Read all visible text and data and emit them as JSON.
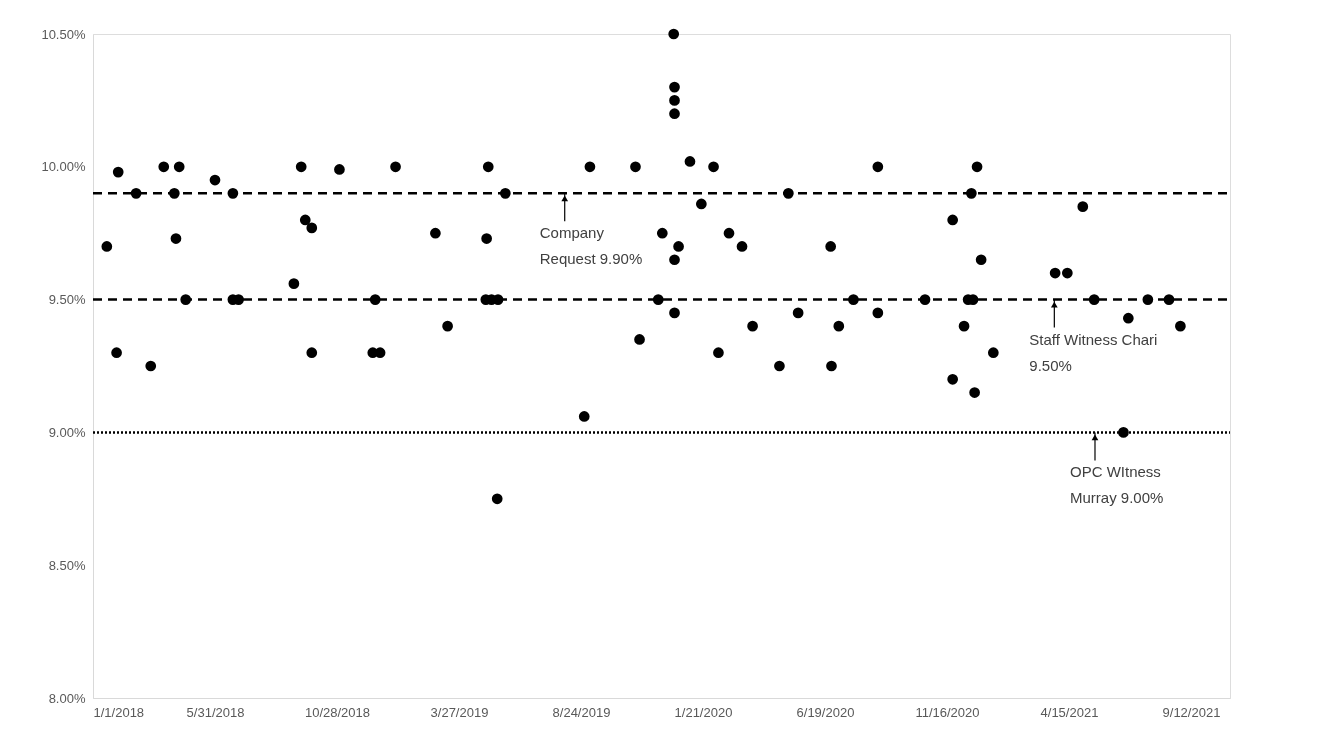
{
  "chart_data": {
    "type": "scatter",
    "marker": "circle",
    "xlim": [
      "2018-01-01",
      "2021-10-30"
    ],
    "xticks": [
      {
        "value": "2018-01-01",
        "label": "1/1/2018"
      },
      {
        "value": "2018-05-31",
        "label": "5/31/2018"
      },
      {
        "value": "2018-10-28",
        "label": "10/28/2018"
      },
      {
        "value": "2019-03-27",
        "label": "3/27/2019"
      },
      {
        "value": "2019-08-24",
        "label": "8/24/2019"
      },
      {
        "value": "2020-01-21",
        "label": "1/21/2020"
      },
      {
        "value": "2020-06-19",
        "label": "6/19/2020"
      },
      {
        "value": "2020-11-16",
        "label": "11/16/2020"
      },
      {
        "value": "2021-04-15",
        "label": "4/15/2021"
      },
      {
        "value": "2021-09-12",
        "label": "9/12/2021"
      }
    ],
    "ylim": [
      8.0,
      10.5
    ],
    "yticks": [
      {
        "value": 8.0,
        "label": "8.00%"
      },
      {
        "value": 8.5,
        "label": "8.50%"
      },
      {
        "value": 9.0,
        "label": "9.00%"
      },
      {
        "value": 9.5,
        "label": "9.50%"
      },
      {
        "value": 10.0,
        "label": "10.00%"
      },
      {
        "value": 10.5,
        "label": "10.50%"
      }
    ],
    "series": [
      {
        "color": "#000000",
        "x": [
          "2018-01-18",
          "2018-01-30",
          "2018-02-01",
          "2018-02-23",
          "2018-03-13",
          "2018-03-29",
          "2018-04-11",
          "2018-04-13",
          "2018-04-17",
          "2018-04-25",
          "2018-05-31",
          "2018-06-22",
          "2018-06-22",
          "2018-06-29",
          "2018-09-05",
          "2018-09-14",
          "2018-09-19",
          "2018-09-27",
          "2018-09-27",
          "2018-10-31",
          "2018-12-11",
          "2018-12-14",
          "2018-12-20",
          "2019-01-08",
          "2019-02-26",
          "2019-03-13",
          "2019-04-29",
          "2019-04-30",
          "2019-05-02",
          "2019-05-06",
          "2019-05-13",
          "2019-05-14",
          "2019-05-23",
          "2019-08-28",
          "2019-09-04",
          "2019-10-30",
          "2019-11-04",
          "2019-11-27",
          "2019-12-02",
          "2019-12-16",
          "2019-12-17",
          "2019-12-17",
          "2019-12-17",
          "2019-12-17",
          "2019-12-17",
          "2019-12-22",
          "2020-01-05",
          "2020-01-19",
          "2020-02-03",
          "2020-02-09",
          "2020-02-22",
          "2020-03-09",
          "2020-03-22",
          "2020-04-24",
          "2020-05-05",
          "2020-05-17",
          "2020-06-26",
          "2020-06-27",
          "2020-07-06",
          "2020-07-24",
          "2020-08-23",
          "2020-08-23",
          "2020-10-20",
          "2020-11-23",
          "2020-11-23",
          "2020-12-07",
          "2020-12-12",
          "2020-12-16",
          "2020-12-18",
          "2020-12-20",
          "2020-12-23",
          "2020-12-28",
          "2021-01-12",
          "2021-03-29",
          "2021-04-13",
          "2021-05-02",
          "2021-05-16",
          "2021-06-21",
          "2021-06-27",
          "2021-07-21",
          "2021-08-16",
          "2021-08-30"
        ],
        "values": [
          9.7,
          9.3,
          9.98,
          9.9,
          9.25,
          10.0,
          9.9,
          9.73,
          10.0,
          9.5,
          9.95,
          9.9,
          9.5,
          9.5,
          9.56,
          10.0,
          9.8,
          9.77,
          9.3,
          9.99,
          9.3,
          9.5,
          9.3,
          10.0,
          9.75,
          9.4,
          9.5,
          9.73,
          10.0,
          9.5,
          8.75,
          9.5,
          9.9,
          9.06,
          10.0,
          10.0,
          9.35,
          9.5,
          9.75,
          10.5,
          10.3,
          10.25,
          10.2,
          9.65,
          9.45,
          9.7,
          10.02,
          9.86,
          10.0,
          9.3,
          9.75,
          9.7,
          9.4,
          9.25,
          9.9,
          9.45,
          9.7,
          9.25,
          9.4,
          9.5,
          10.0,
          9.45,
          9.5,
          9.8,
          9.2,
          9.4,
          9.5,
          9.9,
          9.5,
          9.15,
          10.0,
          9.65,
          9.3,
          9.6,
          9.6,
          9.85,
          9.5,
          9.0,
          9.43,
          9.5,
          9.5,
          9.4
        ]
      }
    ],
    "ref_lines": [
      {
        "axis": "y",
        "value": 9.9,
        "color": "#000000",
        "line_style": "dashed"
      },
      {
        "axis": "y",
        "value": 9.5,
        "color": "#000000",
        "line_style": "dashed"
      },
      {
        "axis": "y",
        "value": 9.0,
        "color": "#000000",
        "line_style": "dotted"
      }
    ],
    "annotations": [
      {
        "text": "Company\nRequest 9.90%",
        "x": "2019-08-04",
        "y": 9.9
      },
      {
        "text": "Staff Witness Chari\n9.50%",
        "x": "2021-03-28",
        "y": 9.5
      },
      {
        "text": "OPC WItness\nMurray 9.00%",
        "x": "2021-05-17",
        "y": 9.0
      }
    ]
  }
}
